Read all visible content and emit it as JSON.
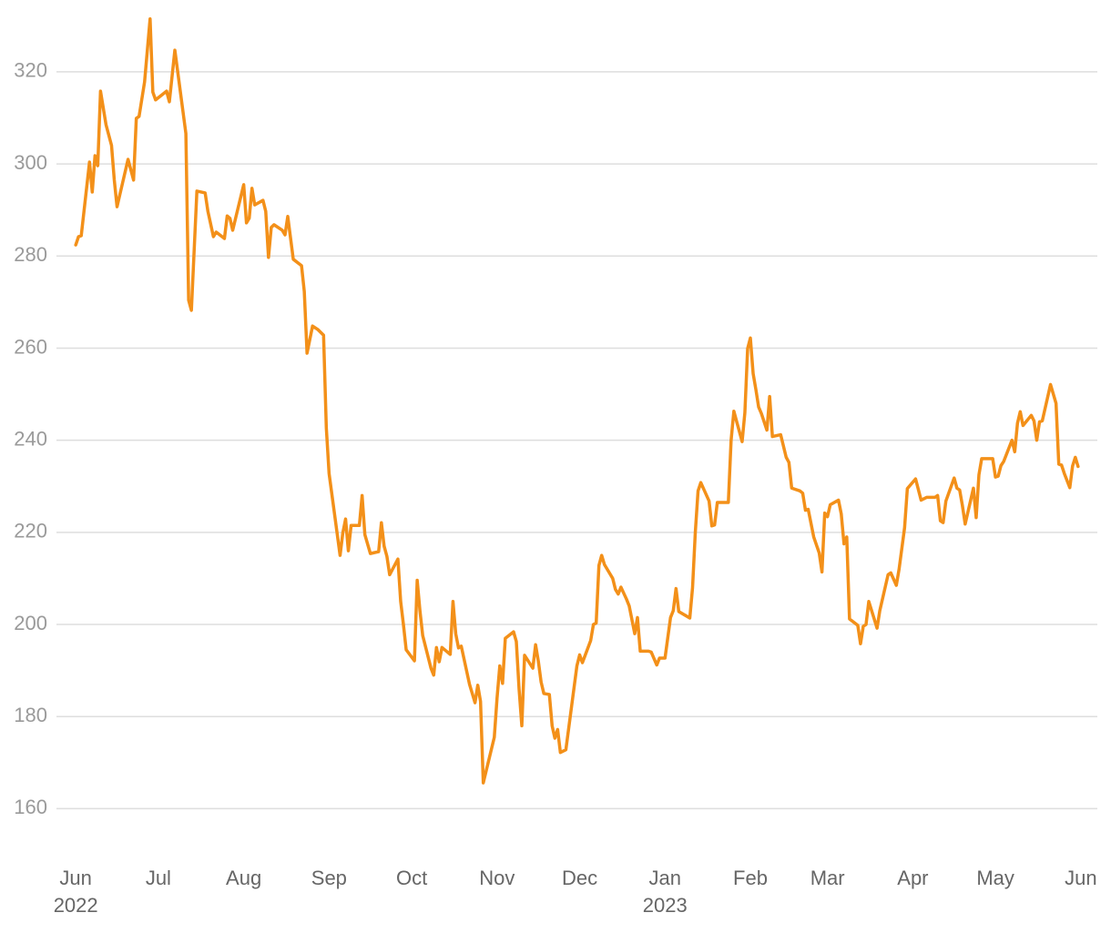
{
  "chart_data": {
    "type": "line",
    "color": "#f39019",
    "grid": true,
    "ylim": [
      150,
      335
    ],
    "yticks": [
      160,
      180,
      200,
      220,
      240,
      260,
      280,
      300,
      320
    ],
    "xlim": [
      "2022-05-25",
      "2023-06-07"
    ],
    "xticks": [
      {
        "value": "2022-06-01",
        "label": "Jun",
        "sublabel": "2022"
      },
      {
        "value": "2022-07-01",
        "label": "Jul"
      },
      {
        "value": "2022-08-01",
        "label": "Aug"
      },
      {
        "value": "2022-09-01",
        "label": "Sep"
      },
      {
        "value": "2022-10-01",
        "label": "Oct"
      },
      {
        "value": "2022-11-01",
        "label": "Nov"
      },
      {
        "value": "2022-12-01",
        "label": "Dec"
      },
      {
        "value": "2023-01-01",
        "label": "Jan",
        "sublabel": "2023"
      },
      {
        "value": "2023-02-01",
        "label": "Feb"
      },
      {
        "value": "2023-03-01",
        "label": "Mar"
      },
      {
        "value": "2023-04-01",
        "label": "Apr"
      },
      {
        "value": "2023-05-01",
        "label": "May"
      },
      {
        "value": "2023-06-01",
        "label": "Jun"
      }
    ],
    "x": [
      "2022-06-01",
      "2022-06-02",
      "2022-06-03",
      "2022-06-06",
      "2022-06-07",
      "2022-06-08",
      "2022-06-09",
      "2022-06-10",
      "2022-06-12",
      "2022-06-14",
      "2022-06-15",
      "2022-06-16",
      "2022-06-20",
      "2022-06-22",
      "2022-06-23",
      "2022-06-24",
      "2022-06-26",
      "2022-06-28",
      "2022-06-29",
      "2022-06-30",
      "2022-07-04",
      "2022-07-05",
      "2022-07-07",
      "2022-07-11",
      "2022-07-12",
      "2022-07-13",
      "2022-07-15",
      "2022-07-18",
      "2022-07-19",
      "2022-07-21",
      "2022-07-22",
      "2022-07-25",
      "2022-07-26",
      "2022-07-27",
      "2022-07-28",
      "2022-08-01",
      "2022-08-02",
      "2022-08-03",
      "2022-08-04",
      "2022-08-05",
      "2022-08-08",
      "2022-08-09",
      "2022-08-10",
      "2022-08-11",
      "2022-08-12",
      "2022-08-15",
      "2022-08-16",
      "2022-08-17",
      "2022-08-19",
      "2022-08-22",
      "2022-08-23",
      "2022-08-24",
      "2022-08-26",
      "2022-08-28",
      "2022-08-30",
      "2022-08-31",
      "2022-09-01",
      "2022-09-05",
      "2022-09-06",
      "2022-09-07",
      "2022-09-08",
      "2022-09-09",
      "2022-09-12",
      "2022-09-13",
      "2022-09-14",
      "2022-09-16",
      "2022-09-19",
      "2022-09-20",
      "2022-09-21",
      "2022-09-22",
      "2022-09-23",
      "2022-09-26",
      "2022-09-27",
      "2022-09-28",
      "2022-09-29",
      "2022-10-02",
      "2022-10-03",
      "2022-10-04",
      "2022-10-05",
      "2022-10-08",
      "2022-10-09",
      "2022-10-10",
      "2022-10-11",
      "2022-10-12",
      "2022-10-15",
      "2022-10-16",
      "2022-10-17",
      "2022-10-18",
      "2022-10-19",
      "2022-10-22",
      "2022-10-23",
      "2022-10-24",
      "2022-10-25",
      "2022-10-26",
      "2022-10-27",
      "2022-10-31",
      "2022-11-01",
      "2022-11-02",
      "2022-11-03",
      "2022-11-04",
      "2022-11-07",
      "2022-11-08",
      "2022-11-09",
      "2022-11-10",
      "2022-11-11",
      "2022-11-14",
      "2022-11-15",
      "2022-11-16",
      "2022-11-17",
      "2022-11-18",
      "2022-11-20",
      "2022-11-21",
      "2022-11-22",
      "2022-11-23",
      "2022-11-24",
      "2022-11-26",
      "2022-11-30",
      "2022-12-01",
      "2022-12-02",
      "2022-12-05",
      "2022-12-06",
      "2022-12-07",
      "2022-12-08",
      "2022-12-09",
      "2022-12-10",
      "2022-12-12",
      "2022-12-13",
      "2022-12-14",
      "2022-12-15",
      "2022-12-16",
      "2022-12-18",
      "2022-12-19",
      "2022-12-21",
      "2022-12-22",
      "2022-12-23",
      "2022-12-26",
      "2022-12-27",
      "2022-12-29",
      "2022-12-30",
      "2023-01-01",
      "2023-01-03",
      "2023-01-04",
      "2023-01-05",
      "2023-01-06",
      "2023-01-10",
      "2023-01-11",
      "2023-01-12",
      "2023-01-13",
      "2023-01-14",
      "2023-01-17",
      "2023-01-18",
      "2023-01-19",
      "2023-01-20",
      "2023-01-24",
      "2023-01-25",
      "2023-01-26",
      "2023-01-29",
      "2023-01-30",
      "2023-01-31",
      "2023-02-01",
      "2023-02-02",
      "2023-02-03",
      "2023-02-04",
      "2023-02-05",
      "2023-02-07",
      "2023-02-08",
      "2023-02-09",
      "2023-02-12",
      "2023-02-14",
      "2023-02-15",
      "2023-02-16",
      "2023-02-19",
      "2023-02-20",
      "2023-02-21",
      "2023-02-22",
      "2023-02-24",
      "2023-02-26",
      "2023-02-27",
      "2023-02-28",
      "2023-03-01",
      "2023-03-02",
      "2023-03-05",
      "2023-03-06",
      "2023-03-07",
      "2023-03-08",
      "2023-03-09",
      "2023-03-12",
      "2023-03-13",
      "2023-03-14",
      "2023-03-15",
      "2023-03-16",
      "2023-03-19",
      "2023-03-20",
      "2023-03-23",
      "2023-03-24",
      "2023-03-26",
      "2023-03-27",
      "2023-03-29",
      "2023-03-30",
      "2023-04-02",
      "2023-04-04",
      "2023-04-06",
      "2023-04-09",
      "2023-04-10",
      "2023-04-11",
      "2023-04-12",
      "2023-04-13",
      "2023-04-16",
      "2023-04-17",
      "2023-04-18",
      "2023-04-19",
      "2023-04-20",
      "2023-04-23",
      "2023-04-24",
      "2023-04-25",
      "2023-04-26",
      "2023-04-30",
      "2023-05-01",
      "2023-05-02",
      "2023-05-03",
      "2023-05-04",
      "2023-05-07",
      "2023-05-08",
      "2023-05-09",
      "2023-05-10",
      "2023-05-11",
      "2023-05-14",
      "2023-05-15",
      "2023-05-16",
      "2023-05-17",
      "2023-05-18",
      "2023-05-21",
      "2023-05-23",
      "2023-05-24",
      "2023-05-25",
      "2023-05-26",
      "2023-05-28",
      "2023-05-29",
      "2023-05-30",
      "2023-05-31"
    ],
    "values": [
      282.4,
      284.2,
      284.4,
      300.4,
      293.9,
      301.8,
      299.6,
      315.8,
      308.5,
      304.0,
      296.5,
      290.7,
      301.0,
      296.5,
      309.9,
      310.3,
      317.8,
      331.5,
      315.6,
      313.9,
      315.8,
      313.5,
      324.7,
      306.6,
      270.4,
      268.2,
      294.1,
      293.7,
      289.7,
      284.2,
      285.2,
      283.8,
      288.7,
      288.2,
      285.6,
      295.5,
      287.2,
      288.2,
      294.7,
      291.1,
      292.1,
      289.7,
      279.7,
      286.2,
      286.8,
      285.6,
      284.6,
      288.6,
      279.3,
      277.9,
      272.3,
      258.9,
      264.8,
      264.0,
      262.8,
      242.7,
      232.8,
      215.0,
      219.9,
      222.9,
      216.0,
      221.5,
      221.5,
      228.0,
      219.5,
      215.4,
      215.8,
      222.1,
      217.0,
      214.8,
      210.8,
      214.2,
      205,
      200,
      194.5,
      192.1,
      209.6,
      203,
      197.6,
      190.5,
      189.0,
      195.0,
      191.9,
      195.0,
      193.5,
      205.0,
      198,
      194.9,
      195.3,
      187,
      185,
      183,
      186.8,
      183.3,
      165.6,
      175.5,
      184,
      191,
      187.2,
      197,
      198.4,
      196.3,
      186,
      178,
      193.3,
      190.5,
      195.6,
      192,
      187.5,
      185,
      184.8,
      178,
      175.3,
      177.2,
      172.2,
      172.8,
      191,
      193.4,
      191.7,
      196.5,
      200,
      200.3,
      212.8,
      215,
      213,
      211,
      210,
      207.6,
      206.6,
      208.1,
      205.5,
      204,
      198,
      201.5,
      194.2,
      194.2,
      194.0,
      191.2,
      192.7,
      192.7,
      201.5,
      203,
      207.8,
      202.8,
      201.4,
      208,
      220,
      229,
      230.8,
      226.8,
      221.4,
      221.6,
      226.5,
      226.5,
      240,
      246.3,
      239.7,
      246,
      259.9,
      262.2,
      254.5,
      251,
      247.2,
      245.8,
      242.2,
      249.5,
      240.8,
      241.2,
      236.3,
      235.2,
      229.6,
      229.0,
      228.5,
      224.8,
      225,
      219,
      215.5,
      211.4,
      224.2,
      223.4,
      226,
      227,
      224,
      217.5,
      219,
      201.2,
      199.8,
      195.8,
      199.6,
      200,
      205,
      199.2,
      203,
      210.8,
      211.2,
      208.5,
      212,
      221,
      229.5,
      231.6,
      227,
      227.6,
      227.6,
      228,
      222.5,
      222.1,
      226.8,
      231.8,
      229.6,
      229.2,
      225.8,
      221.8,
      229.6,
      223.2,
      232.5,
      236,
      236,
      232,
      232.2,
      234.5,
      235.4,
      240,
      237.5,
      243.7,
      246.2,
      243.2,
      245.4,
      244.2,
      240,
      244,
      244.2,
      252.1,
      248,
      234.8,
      234.6,
      232.8,
      229.7,
      234.4,
      236.3,
      234.3
    ]
  }
}
